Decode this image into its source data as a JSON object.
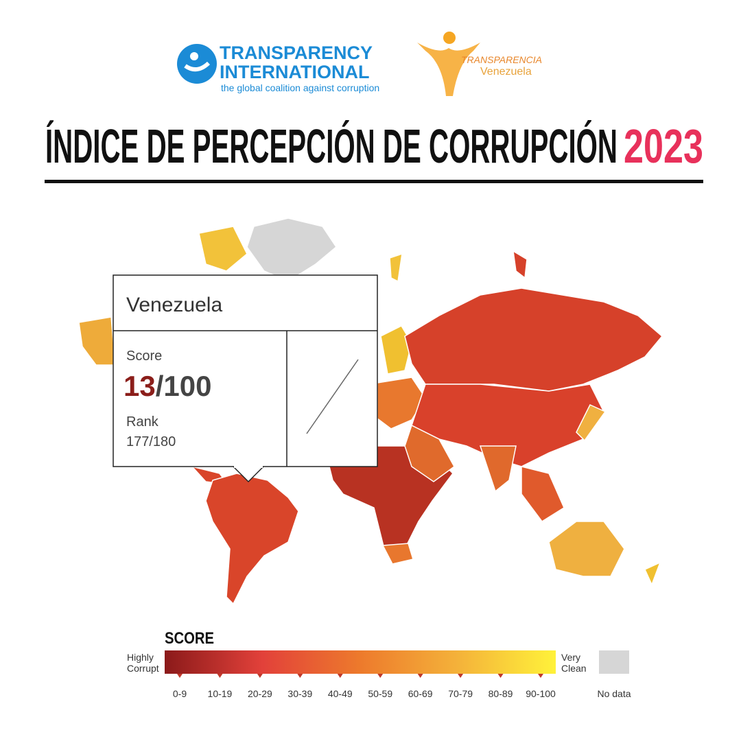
{
  "header": {
    "ti_logo": {
      "line1": "TRANSPARENCY",
      "line2": "INTERNATIONAL",
      "tagline": "the global coalition against corruption"
    },
    "tv_logo": {
      "line1": "TRANSPARENCIA",
      "line2": "Venezuela"
    },
    "title": "ÍNDICE DE PERCEPCIÓN DE CORRUPCIÓN",
    "year": "2023"
  },
  "tooltip": {
    "country": "Venezuela",
    "score_label": "Score",
    "score": 13,
    "score_max": "/100",
    "rank_label": "Rank",
    "rank": "177/180"
  },
  "legend": {
    "title": "SCORE",
    "low_label": [
      "Highly",
      "Corrupt"
    ],
    "high_label": [
      "Very",
      "Clean"
    ],
    "ranges": [
      "0-9",
      "10-19",
      "20-29",
      "30-39",
      "40-49",
      "50-59",
      "60-69",
      "70-79",
      "80-89",
      "90-100"
    ],
    "no_data": "No data"
  }
}
